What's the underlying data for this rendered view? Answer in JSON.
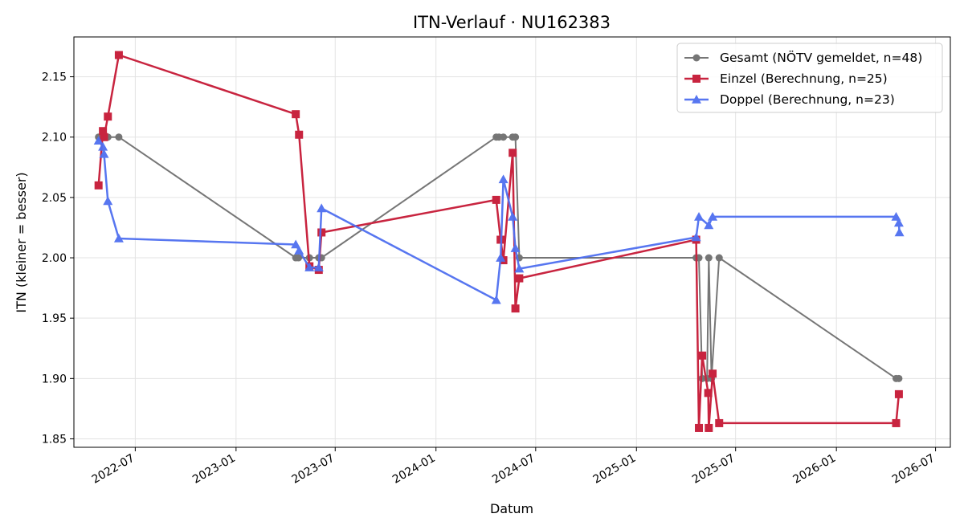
{
  "chart_data": {
    "type": "line",
    "title": "ITN-Verlauf · NU162383",
    "xlabel": "Datum",
    "ylabel": "ITN  (kleiner = besser)",
    "x_scale": "date",
    "xlim": [
      "2022-03-11",
      "2026-07-28"
    ],
    "ylim": [
      1.843,
      2.183
    ],
    "x_ticks": [
      "2022-07",
      "2023-01",
      "2023-07",
      "2024-01",
      "2024-07",
      "2025-01",
      "2025-07",
      "2026-01",
      "2026-07"
    ],
    "y_ticks": [
      "1.85",
      "1.90",
      "1.95",
      "2.00",
      "2.05",
      "2.10",
      "2.15"
    ],
    "grid": true,
    "legend_position": "upper right",
    "series": [
      {
        "name": "Gesamt (NÖTV gemeldet, n=48)",
        "color": "#555555",
        "marker": "circle",
        "points": [
          [
            "2022-04-25",
            2.1
          ],
          [
            "2022-04-28",
            2.1
          ],
          [
            "2022-05-01",
            2.1
          ],
          [
            "2022-05-03",
            2.1
          ],
          [
            "2022-05-05",
            2.1
          ],
          [
            "2022-05-12",
            2.1
          ],
          [
            "2022-06-01",
            2.1
          ],
          [
            "2023-04-20",
            2.0
          ],
          [
            "2023-04-25",
            2.0
          ],
          [
            "2023-05-15",
            2.0
          ],
          [
            "2023-06-01",
            2.0
          ],
          [
            "2023-06-06",
            2.0
          ],
          [
            "2024-04-20",
            2.1
          ],
          [
            "2024-04-25",
            2.1
          ],
          [
            "2024-05-03",
            2.1
          ],
          [
            "2024-05-20",
            2.1
          ],
          [
            "2024-05-25",
            2.1
          ],
          [
            "2024-06-01",
            2.0
          ],
          [
            "2025-04-20",
            2.0
          ],
          [
            "2025-04-25",
            2.0
          ],
          [
            "2025-05-01",
            1.9
          ],
          [
            "2025-05-10",
            1.9
          ],
          [
            "2025-05-13",
            2.0
          ],
          [
            "2025-05-18",
            1.9
          ],
          [
            "2025-06-01",
            2.0
          ],
          [
            "2026-04-20",
            1.9
          ],
          [
            "2026-04-25",
            1.9
          ]
        ]
      },
      {
        "name": "Einzel (Berechnung, n=25)",
        "color": "#c8243f",
        "marker": "square",
        "points": [
          [
            "2022-04-25",
            2.06
          ],
          [
            "2022-05-03",
            2.105
          ],
          [
            "2022-05-05",
            2.1
          ],
          [
            "2022-05-12",
            2.117
          ],
          [
            "2022-06-01",
            2.168
          ],
          [
            "2023-04-20",
            2.119
          ],
          [
            "2023-04-26",
            2.102
          ],
          [
            "2023-05-15",
            1.993
          ],
          [
            "2023-06-01",
            1.99
          ],
          [
            "2023-06-06",
            2.021
          ],
          [
            "2024-04-20",
            2.048
          ],
          [
            "2024-04-28",
            2.015
          ],
          [
            "2024-05-03",
            1.998
          ],
          [
            "2024-05-20",
            2.087
          ],
          [
            "2024-05-25",
            1.958
          ],
          [
            "2024-06-01",
            1.983
          ],
          [
            "2025-04-20",
            2.015
          ],
          [
            "2025-04-25",
            1.859
          ],
          [
            "2025-05-01",
            1.919
          ],
          [
            "2025-05-12",
            1.888
          ],
          [
            "2025-05-13",
            1.859
          ],
          [
            "2025-05-20",
            1.904
          ],
          [
            "2025-06-01",
            1.863
          ],
          [
            "2026-04-20",
            1.863
          ],
          [
            "2026-04-25",
            1.887
          ]
        ]
      },
      {
        "name": "Doppel (Berechnung, n=23)",
        "color": "#4f6ff0",
        "marker": "triangle",
        "points": [
          [
            "2022-04-25",
            2.097
          ],
          [
            "2022-05-03",
            2.092
          ],
          [
            "2022-05-05",
            2.086
          ],
          [
            "2022-05-12",
            2.047
          ],
          [
            "2022-06-01",
            2.016
          ],
          [
            "2023-04-20",
            2.011
          ],
          [
            "2023-04-26",
            2.006
          ],
          [
            "2023-05-15",
            1.992
          ],
          [
            "2023-06-01",
            1.992
          ],
          [
            "2023-06-06",
            2.041
          ],
          [
            "2024-04-20",
            1.965
          ],
          [
            "2024-04-28",
            2.0
          ],
          [
            "2024-05-03",
            2.065
          ],
          [
            "2024-05-20",
            2.034
          ],
          [
            "2024-05-25",
            2.008
          ],
          [
            "2024-06-01",
            1.991
          ],
          [
            "2025-04-20",
            2.017
          ],
          [
            "2025-04-25",
            2.034
          ],
          [
            "2025-05-13",
            2.027
          ],
          [
            "2025-05-20",
            2.034
          ],
          [
            "2026-04-20",
            2.034
          ],
          [
            "2026-04-25",
            2.029
          ],
          [
            "2026-04-26",
            2.021
          ]
        ]
      }
    ]
  }
}
